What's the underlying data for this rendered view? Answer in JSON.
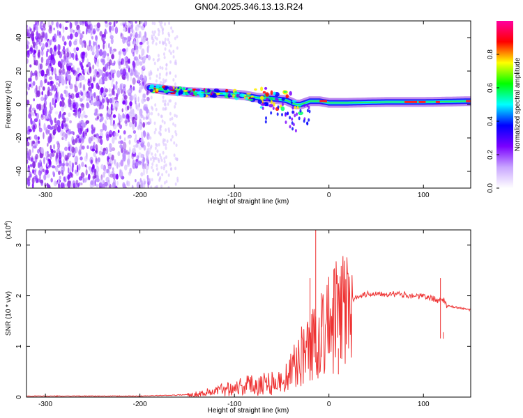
{
  "chart_data": [
    {
      "type": "heatmap",
      "title": "GN04.2025.346.13.13.R24",
      "xlabel": "Height of straight line (km)",
      "ylabel": "Frequency (Hz)",
      "xlim": [
        -320,
        150
      ],
      "ylim": [
        -50,
        50
      ],
      "xticks": [
        -300,
        -200,
        -100,
        0,
        100
      ],
      "yticks": [
        -40,
        -20,
        0,
        20,
        40
      ],
      "ridge": {
        "x": [
          -190,
          -170,
          -150,
          -130,
          -110,
          -90,
          -75,
          -60,
          -45,
          -35,
          -30,
          -20,
          -10,
          0,
          20,
          60,
          100,
          150
        ],
        "y": [
          10,
          8.5,
          7.5,
          7,
          6.5,
          5.5,
          4,
          3.5,
          2.5,
          0,
          0,
          2,
          2,
          1,
          1,
          1.5,
          1.5,
          2
        ]
      },
      "colorbar": {
        "label": "Normalized spectral amplitude",
        "range": [
          0,
          1
        ],
        "ticks": [
          "0.0",
          "0.2",
          "0.4",
          "0.6",
          "0.8"
        ],
        "colors": [
          "#ffffff",
          "#c9a6ff",
          "#7a00ff",
          "#0000ff",
          "#00ffff",
          "#00ff00",
          "#ffff00",
          "#ff0000",
          "#ff00a0"
        ]
      }
    },
    {
      "type": "line",
      "xlabel": "Height of straight line (km)",
      "ylabel": "SNR (10 * v/v)",
      "multiplier": "(x10",
      "multiplier_exp": "4",
      "multiplier_close": ")",
      "xlim": [
        -320,
        150
      ],
      "ylim": [
        0,
        3.3
      ],
      "xticks": [
        -300,
        -200,
        -100,
        0,
        100
      ],
      "yticks": [
        0,
        1,
        2,
        3
      ],
      "series": [
        {
          "name": "SNR",
          "color": "#ee3333",
          "x": [
            -320,
            -200,
            -160,
            -140,
            -120,
            -100,
            -80,
            -60,
            -50,
            -40,
            -30,
            -20,
            -15,
            -10,
            0,
            10,
            20,
            30,
            40,
            50,
            60,
            80,
            100,
            110,
            115,
            120,
            125,
            150
          ],
          "y": [
            0.02,
            0.02,
            0.04,
            0.06,
            0.12,
            0.2,
            0.25,
            0.3,
            0.3,
            0.5,
            0.8,
            1.0,
            1.1,
            1.3,
            1.4,
            1.6,
            1.85,
            2.0,
            2.03,
            2.05,
            2.04,
            2.02,
            1.98,
            1.95,
            1.9,
            1.95,
            1.8,
            1.72
          ]
        }
      ],
      "spikes": [
        {
          "x": -14,
          "y": 3.3
        },
        {
          "x": -20,
          "y": 2.35
        },
        {
          "x": -8,
          "y": 2.05
        },
        {
          "x": 118,
          "y": 2.35
        },
        {
          "x": 121,
          "y": 1.28
        },
        {
          "x": 10,
          "y": 0.45
        }
      ]
    }
  ]
}
